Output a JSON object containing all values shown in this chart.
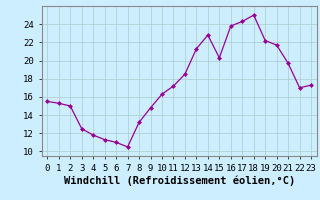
{
  "x": [
    0,
    1,
    2,
    3,
    4,
    5,
    6,
    7,
    8,
    9,
    10,
    11,
    12,
    13,
    14,
    15,
    16,
    17,
    18,
    19,
    20,
    21,
    22,
    23
  ],
  "y": [
    15.5,
    15.3,
    15.0,
    12.5,
    11.8,
    11.3,
    11.0,
    10.5,
    13.2,
    14.8,
    16.3,
    17.2,
    18.5,
    21.3,
    22.8,
    20.3,
    23.8,
    24.3,
    25.0,
    22.2,
    21.7,
    19.7,
    17.0,
    17.3
  ],
  "line_color": "#990099",
  "marker": "D",
  "marker_size": 2,
  "bg_color": "#cceeff",
  "grid_color": "#aacccc",
  "xlabel": "Windchill (Refroidissement éolien,°C)",
  "xlabel_fontsize": 7.5,
  "ylabel_ticks": [
    10,
    12,
    14,
    16,
    18,
    20,
    22,
    24
  ],
  "xlim": [
    -0.5,
    23.5
  ],
  "ylim": [
    9.5,
    26.0
  ],
  "tick_fontsize": 6.5,
  "xtick_labels": [
    "0",
    "1",
    "2",
    "3",
    "4",
    "5",
    "6",
    "7",
    "8",
    "9",
    "10",
    "11",
    "12",
    "13",
    "14",
    "15",
    "16",
    "17",
    "18",
    "19",
    "20",
    "21",
    "22",
    "23"
  ]
}
